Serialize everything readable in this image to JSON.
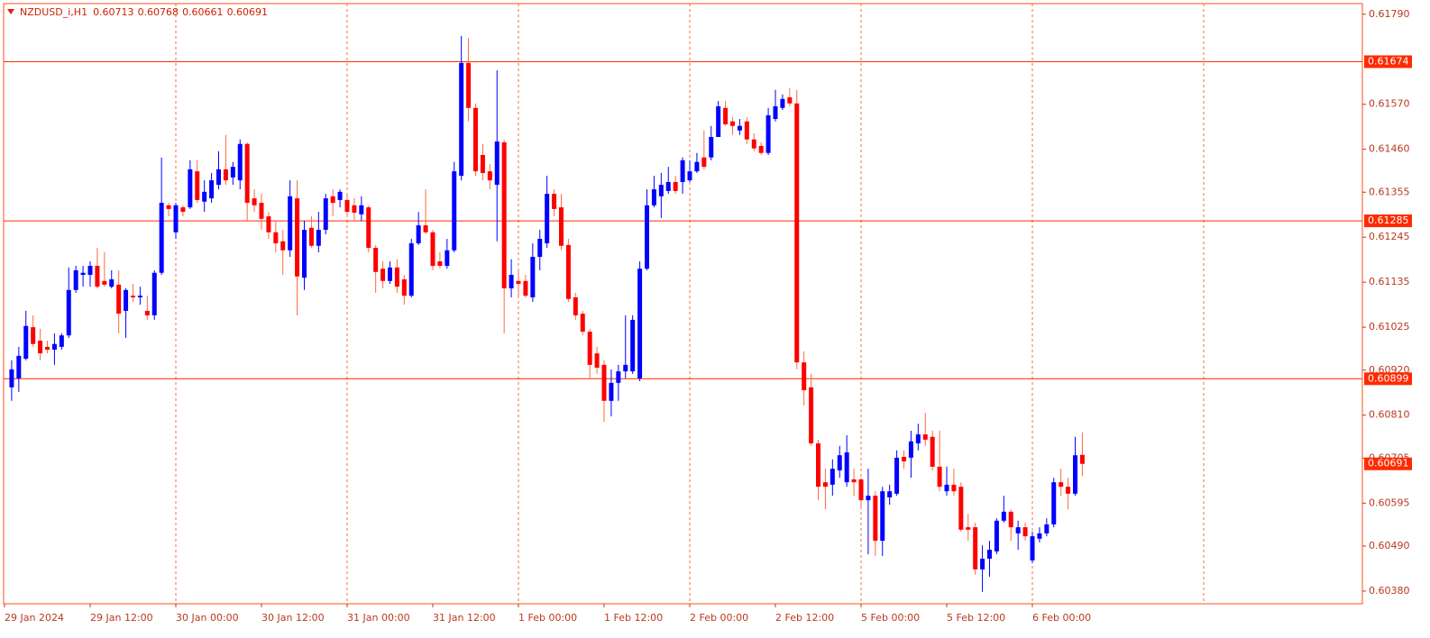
{
  "chart_data": {
    "type": "candlestick",
    "title": "NZDUSD_i,H1",
    "open": [
      0.60878,
      0.609,
      0.60948,
      0.61025,
      0.60992,
      0.60977,
      0.6097,
      0.60977,
      0.61005,
      0.61116,
      0.61153,
      0.61153,
      0.61175,
      0.61138,
      0.61124,
      0.61129,
      0.61065,
      0.61102,
      0.61098,
      0.61065,
      0.61054,
      0.61158,
      0.61323,
      0.61257,
      0.61318,
      0.61318,
      0.61406,
      0.61332,
      0.6134,
      0.61373,
      0.61411,
      0.61391,
      0.61384,
      0.61473,
      0.6134,
      0.61329,
      0.61296,
      0.61257,
      0.61235,
      0.61213,
      0.6134,
      0.61146,
      0.61268,
      0.61224,
      0.61263,
      0.61345,
      0.61336,
      0.61336,
      0.61323,
      0.61301,
      0.61318,
      0.61219,
      0.61168,
      0.61138,
      0.61171,
      0.61142,
      0.61102,
      0.6123,
      0.61274,
      0.61257,
      0.61186,
      0.61175,
      0.61213,
      0.61395,
      0.61671,
      0.61561,
      0.61446,
      0.61406,
      0.61373,
      0.61477,
      0.6112,
      0.61138,
      0.61138,
      0.61098,
      0.61197,
      0.6123,
      0.61351,
      0.61318,
      0.61226,
      0.61098,
      0.61058,
      0.61014,
      0.60961,
      0.60933,
      0.60845,
      0.60889,
      0.60917,
      0.60917,
      0.609,
      0.61168,
      0.61323,
      0.61345,
      0.61358,
      0.6138,
      0.6138,
      0.61384,
      0.61406,
      0.6144,
      0.6144,
      0.6149,
      0.61561,
      0.61528,
      0.61506,
      0.61528,
      0.61484,
      0.61468,
      0.61451,
      0.61534,
      0.61561,
      0.61587,
      0.61572,
      0.60939,
      0.60878,
      0.60741,
      0.60646,
      0.6064,
      0.60675,
      0.60646,
      0.60653,
      0.60653,
      0.60602,
      0.60613,
      0.60503,
      0.60609,
      0.60618,
      0.60708,
      0.60706,
      0.60741,
      0.60763,
      0.60757,
      0.60684,
      0.60624,
      0.6064,
      0.60635,
      0.60536,
      0.60536,
      0.60433,
      0.60459,
      0.60477,
      0.60552,
      0.60574,
      0.60521,
      0.60536,
      0.60455,
      0.60508,
      0.60521,
      0.60543,
      0.60646,
      0.60635,
      0.60618,
      0.60713
    ],
    "high": [
      0.60944,
      0.60977,
      0.61065,
      0.61054,
      0.61021,
      0.60992,
      0.6101,
      0.6101,
      0.61171,
      0.61175,
      0.61175,
      0.61186,
      0.61219,
      0.61208,
      0.61164,
      0.61164,
      0.6112,
      0.61131,
      0.61124,
      0.61102,
      0.61164,
      0.6144,
      0.61329,
      0.61329,
      0.61323,
      0.61433,
      0.61433,
      0.61384,
      0.61402,
      0.61455,
      0.61495,
      0.61429,
      0.61484,
      0.61477,
      0.61362,
      0.61351,
      0.61307,
      0.61285,
      0.61263,
      0.61384,
      0.61384,
      0.61285,
      0.61296,
      0.61307,
      0.61351,
      0.61362,
      0.61362,
      0.61351,
      0.6134,
      0.61345,
      0.61323,
      0.61226,
      0.61186,
      0.61186,
      0.61191,
      0.61153,
      0.61241,
      0.61307,
      0.61362,
      0.61263,
      0.61208,
      0.61241,
      0.61429,
      0.61737,
      0.61732,
      0.61572,
      0.61473,
      0.61424,
      0.61653,
      0.61484,
      0.61191,
      0.61164,
      0.61153,
      0.6123,
      0.61263,
      0.61395,
      0.61362,
      0.61351,
      0.61241,
      0.61109,
      0.61065,
      0.61021,
      0.60977,
      0.60944,
      0.60922,
      0.60933,
      0.61054,
      0.61054,
      0.61186,
      0.61362,
      0.61395,
      0.61402,
      0.61417,
      0.61395,
      0.6144,
      0.61433,
      0.61451,
      0.61506,
      0.61517,
      0.61578,
      0.61578,
      0.61539,
      0.61534,
      0.61539,
      0.61499,
      0.61477,
      0.61561,
      0.61605,
      0.61594,
      0.61609,
      0.61605,
      0.60966,
      0.60911,
      0.6075,
      0.60679,
      0.60702,
      0.60735,
      0.60761,
      0.60679,
      0.60657,
      0.60679,
      0.60624,
      0.60635,
      0.6064,
      0.60724,
      0.60724,
      0.60772,
      0.60789,
      0.60816,
      0.60772,
      0.60772,
      0.60684,
      0.60679,
      0.60646,
      0.60569,
      0.60547,
      0.60492,
      0.60503,
      0.60558,
      0.60613,
      0.6058,
      0.60552,
      0.60547,
      0.60525,
      0.60536,
      0.60558,
      0.60657,
      0.60679,
      0.60657,
      0.60757,
      0.60768
    ],
    "low": [
      0.60845,
      0.60867,
      0.60944,
      0.60977,
      0.60944,
      0.60961,
      0.60933,
      0.6097,
      0.60999,
      0.61109,
      0.61124,
      0.61124,
      0.6112,
      0.61124,
      0.6112,
      0.6101,
      0.60999,
      0.61087,
      0.6108,
      0.61043,
      0.61043,
      0.61153,
      0.61296,
      0.61241,
      0.61296,
      0.61314,
      0.61329,
      0.61307,
      0.61329,
      0.61362,
      0.61373,
      0.61373,
      0.61362,
      0.61285,
      0.61307,
      0.61263,
      0.61241,
      0.61208,
      0.61153,
      0.61197,
      0.61054,
      0.61116,
      0.61219,
      0.61208,
      0.61252,
      0.61296,
      0.61318,
      0.61296,
      0.61285,
      0.61285,
      0.61208,
      0.61109,
      0.6112,
      0.61131,
      0.61109,
      0.6108,
      0.61098,
      0.61226,
      0.61252,
      0.61164,
      0.61168,
      0.61168,
      0.61208,
      0.61384,
      0.61528,
      0.61395,
      0.61384,
      0.61362,
      0.61235,
      0.6101,
      0.61098,
      0.61098,
      0.61098,
      0.61087,
      0.61164,
      0.61219,
      0.61296,
      0.61213,
      0.61087,
      0.61043,
      0.61005,
      0.609,
      0.60911,
      0.60794,
      0.60807,
      0.60845,
      0.609,
      0.60911,
      0.60893,
      0.61164,
      0.61318,
      0.61292,
      0.61351,
      0.61351,
      0.61351,
      0.6138,
      0.61402,
      0.61411,
      0.61433,
      0.6149,
      0.61517,
      0.61495,
      0.61495,
      0.61473,
      0.61455,
      0.61446,
      0.61446,
      0.61528,
      0.61556,
      0.61565,
      0.60922,
      0.60834,
      0.60735,
      0.60602,
      0.6058,
      0.60613,
      0.60657,
      0.60635,
      0.60613,
      0.6058,
      0.6047,
      0.60466,
      0.60466,
      0.60591,
      0.60613,
      0.60679,
      0.60657,
      0.60724,
      0.60735,
      0.60675,
      0.60624,
      0.60613,
      0.60613,
      0.60525,
      0.60503,
      0.6042,
      0.60378,
      0.60415,
      0.6047,
      0.60547,
      0.60503,
      0.60481,
      0.60503,
      0.60448,
      0.60499,
      0.60514,
      0.60536,
      0.60613,
      0.6058,
      0.60613,
      0.60661
    ],
    "close": [
      0.60922,
      0.60955,
      0.61028,
      0.60984,
      0.60961,
      0.6097,
      0.60984,
      0.61005,
      0.61116,
      0.61164,
      0.61158,
      0.61175,
      0.61124,
      0.61129,
      0.61142,
      0.61058,
      0.61116,
      0.61098,
      0.61102,
      0.61054,
      0.61158,
      0.61329,
      0.61314,
      0.61323,
      0.61307,
      0.61411,
      0.61336,
      0.61356,
      0.61384,
      0.61411,
      0.61384,
      0.61417,
      0.61473,
      0.61329,
      0.61323,
      0.6129,
      0.61257,
      0.6123,
      0.61213,
      0.61345,
      0.61149,
      0.61263,
      0.61224,
      0.61263,
      0.6134,
      0.61329,
      0.61356,
      0.61307,
      0.61305,
      0.61323,
      0.61219,
      0.6116,
      0.61138,
      0.61171,
      0.61124,
      0.61102,
      0.6123,
      0.61274,
      0.61257,
      0.61175,
      0.61175,
      0.61213,
      0.61406,
      0.61671,
      0.61561,
      0.61406,
      0.61402,
      0.61384,
      0.61479,
      0.6112,
      0.61153,
      0.61131,
      0.61102,
      0.61197,
      0.61241,
      0.61351,
      0.61314,
      0.61224,
      0.61094,
      0.61054,
      0.61014,
      0.60933,
      0.60926,
      0.60845,
      0.60889,
      0.60917,
      0.60933,
      0.61043,
      0.61168,
      0.61323,
      0.61362,
      0.61373,
      0.6138,
      0.61358,
      0.61433,
      0.61406,
      0.61429,
      0.61417,
      0.6149,
      0.61565,
      0.61521,
      0.61517,
      0.61517,
      0.61484,
      0.61462,
      0.61451,
      0.61543,
      0.61565,
      0.61583,
      0.61572,
      0.60939,
      0.60871,
      0.60741,
      0.60635,
      0.60635,
      0.60679,
      0.60712,
      0.60719,
      0.60646,
      0.60602,
      0.60613,
      0.60503,
      0.60624,
      0.60624,
      0.60706,
      0.60697,
      0.60746,
      0.60763,
      0.6075,
      0.60684,
      0.60635,
      0.6064,
      0.60624,
      0.6053,
      0.6053,
      0.60433,
      0.60459,
      0.60481,
      0.60552,
      0.60574,
      0.60536,
      0.60536,
      0.60514,
      0.60514,
      0.60521,
      0.60543,
      0.60646,
      0.60635,
      0.60618,
      0.60712,
      0.60691
    ],
    "bull_color": "#0000ff",
    "bear_color": "#ff0000",
    "bear_wick_color": "#ff6a3d",
    "levels": [
      0.61674,
      0.61285,
      0.60899
    ],
    "level_color": "#ff2a00",
    "ylim": [
      0.60349,
      0.61816
    ],
    "yticks": [
      {
        "value": 0.6179,
        "label": "0.61790"
      },
      {
        "value": 0.6157,
        "label": "0.61570"
      },
      {
        "value": 0.6146,
        "label": "0.61460"
      },
      {
        "value": 0.61355,
        "label": "0.61355"
      },
      {
        "value": 0.61245,
        "label": "0.61245"
      },
      {
        "value": 0.61135,
        "label": "0.61135"
      },
      {
        "value": 0.61025,
        "label": "0.61025"
      },
      {
        "value": 0.6092,
        "label": "0.60920"
      },
      {
        "value": 0.6081,
        "label": "0.60810"
      },
      {
        "value": 0.60705,
        "label": "0.60705"
      },
      {
        "value": 0.60595,
        "label": "0.60595"
      },
      {
        "value": 0.6049,
        "label": "0.60490"
      },
      {
        "value": 0.6038,
        "label": "0.60380"
      }
    ],
    "xticks": [
      "29 Jan 2024",
      "29 Jan 12:00",
      "30 Jan 00:00",
      "30 Jan 12:00",
      "31 Jan 00:00",
      "31 Jan 12:00",
      "1 Feb 00:00",
      "1 Feb 12:00",
      "2 Feb 00:00",
      "2 Feb 12:00",
      "5 Feb 00:00",
      "5 Feb 12:00",
      "6 Feb 00:00"
    ],
    "grid": true
  }
}
